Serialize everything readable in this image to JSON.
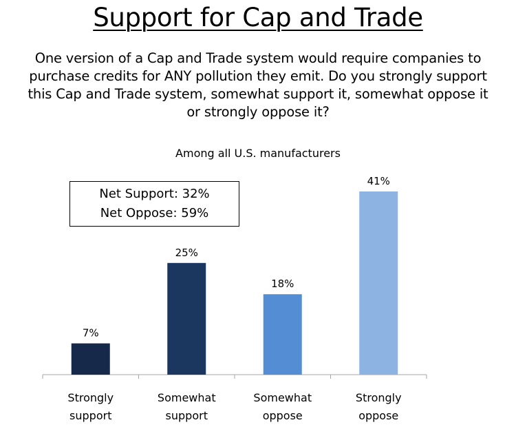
{
  "chart_data": {
    "type": "bar",
    "title": "Support for Cap and Trade",
    "question": "One version of a Cap and Trade system would require companies to purchase credits for ANY pollution they emit. Do you strongly support this Cap and Trade system, somewhat support it, somewhat oppose it or strongly oppose it?",
    "subtitle": "Among all U.S. manufacturers",
    "categories": [
      [
        "Strongly",
        "support"
      ],
      [
        "Somewhat",
        "support"
      ],
      [
        "Somewhat",
        "oppose"
      ],
      [
        "Strongly",
        "oppose"
      ]
    ],
    "values": [
      7,
      25,
      18,
      41
    ],
    "value_labels": [
      "7%",
      "25%",
      "18%",
      "41%"
    ],
    "colors": [
      "#16294a",
      "#1c375f",
      "#548dd4",
      "#8db3e2"
    ],
    "ylim": [
      0,
      41
    ],
    "grid": false,
    "annotation": {
      "lines": [
        "Net Support: 32%",
        "Net Oppose: 59%"
      ]
    }
  }
}
